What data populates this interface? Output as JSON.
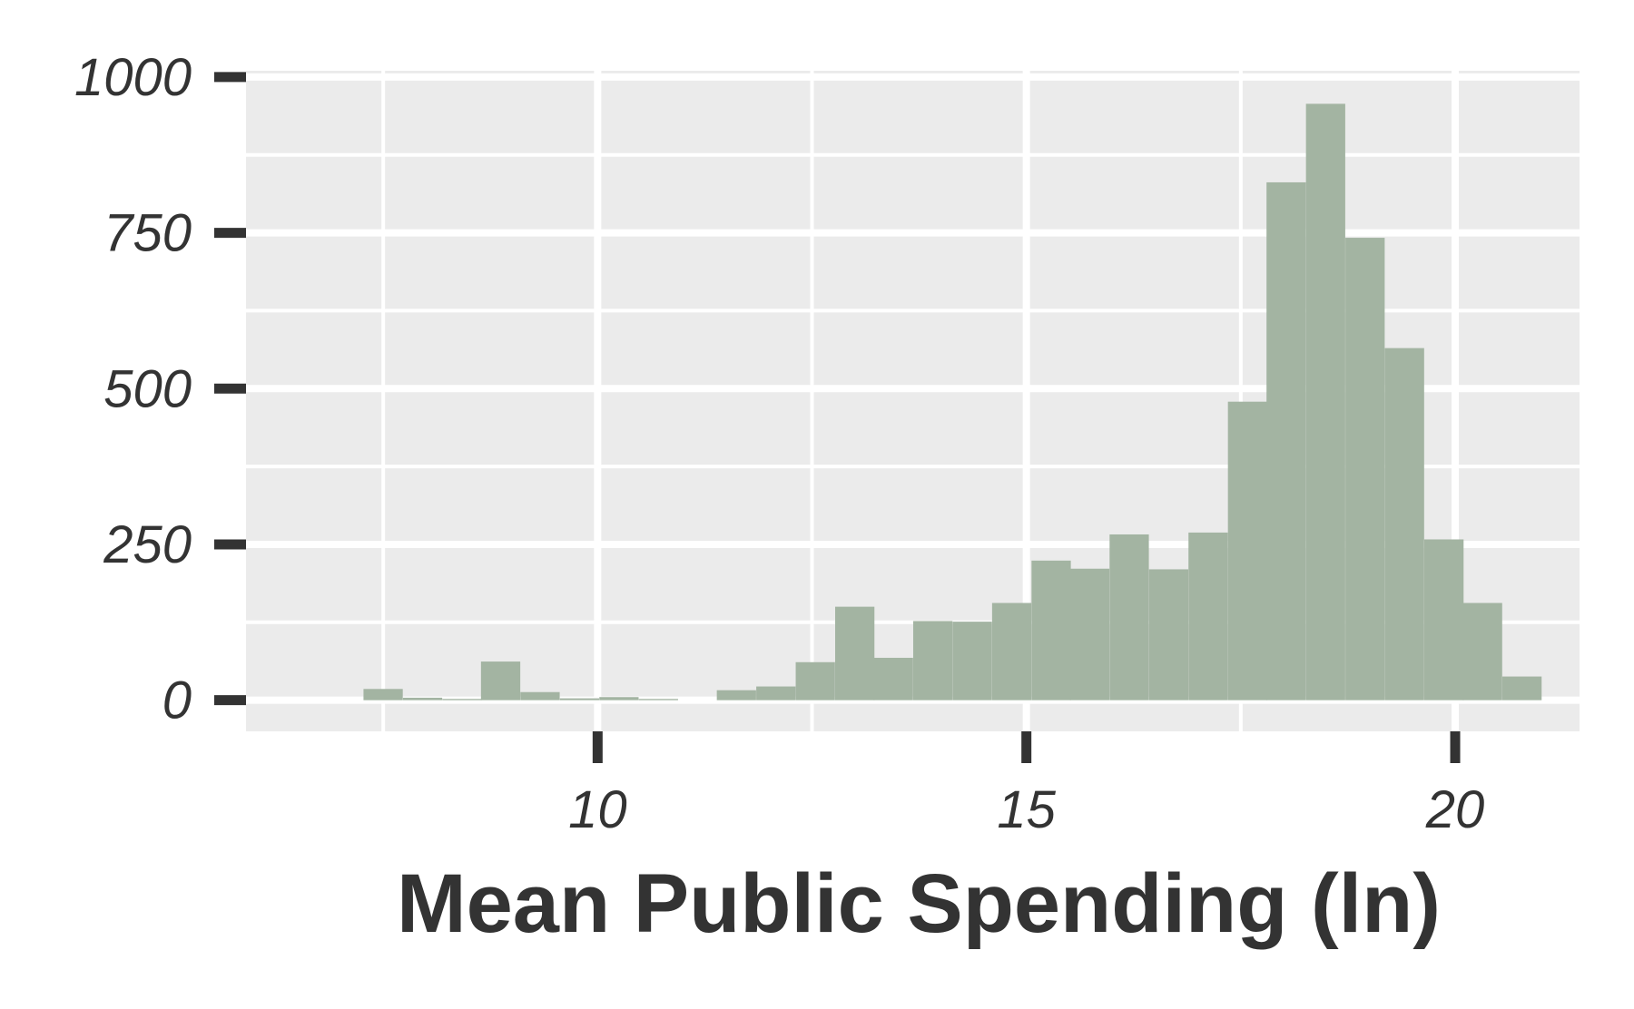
{
  "chart_data": {
    "type": "bar",
    "subtype": "histogram",
    "title": "",
    "xlabel": "Mean Public Spending (ln)",
    "ylabel": "",
    "xlim": [
      5.9,
      21.45
    ],
    "ylim": [
      -50,
      1010
    ],
    "x_ticks": [
      10,
      15,
      20
    ],
    "y_ticks": [
      0,
      250,
      500,
      750,
      1000
    ],
    "x_tick_labels": [
      "10",
      "15",
      "20"
    ],
    "y_tick_labels": [
      "0",
      "250",
      "500",
      "750",
      "1000"
    ],
    "bin_width": 0.458,
    "bins": [
      {
        "start": 7.27,
        "value": 18
      },
      {
        "start": 7.73,
        "value": 4
      },
      {
        "start": 8.19,
        "value": 2
      },
      {
        "start": 8.64,
        "value": 62
      },
      {
        "start": 9.1,
        "value": 13
      },
      {
        "start": 9.56,
        "value": 3
      },
      {
        "start": 10.02,
        "value": 5
      },
      {
        "start": 10.48,
        "value": 2
      },
      {
        "start": 10.93,
        "value": 0
      },
      {
        "start": 11.39,
        "value": 16
      },
      {
        "start": 11.85,
        "value": 22
      },
      {
        "start": 12.31,
        "value": 61
      },
      {
        "start": 12.77,
        "value": 150
      },
      {
        "start": 13.22,
        "value": 68
      },
      {
        "start": 13.68,
        "value": 127
      },
      {
        "start": 14.14,
        "value": 126
      },
      {
        "start": 14.6,
        "value": 156
      },
      {
        "start": 15.06,
        "value": 224
      },
      {
        "start": 15.51,
        "value": 211
      },
      {
        "start": 15.97,
        "value": 266
      },
      {
        "start": 16.43,
        "value": 210
      },
      {
        "start": 16.89,
        "value": 269
      },
      {
        "start": 17.35,
        "value": 479
      },
      {
        "start": 17.8,
        "value": 831
      },
      {
        "start": 18.26,
        "value": 957
      },
      {
        "start": 18.72,
        "value": 742
      },
      {
        "start": 19.18,
        "value": 565
      },
      {
        "start": 19.64,
        "value": 258
      },
      {
        "start": 20.09,
        "value": 156
      },
      {
        "start": 20.55,
        "value": 38
      }
    ],
    "colors": {
      "panel": "#EBEBEB",
      "grid": "#FFFFFF",
      "bar": "#A3B4A2",
      "text": "#333333"
    },
    "grid": true,
    "legend": "none"
  }
}
